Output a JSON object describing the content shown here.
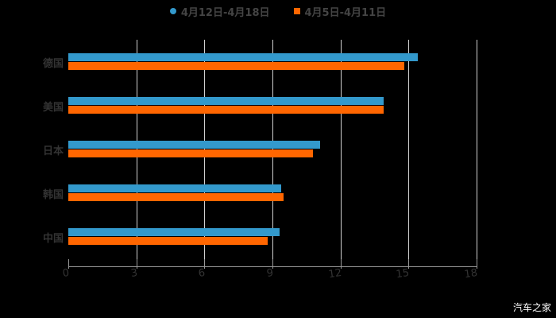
{
  "chart_data": {
    "type": "bar",
    "orientation": "horizontal",
    "title": "",
    "xlabel": "",
    "ylabel": "",
    "categories": [
      "德国",
      "美国",
      "日本",
      "韩国",
      "中国"
    ],
    "series": [
      {
        "name": "4月12日-4月18日",
        "color": "#3399CC",
        "values": [
          15.4,
          13.9,
          11.1,
          9.4,
          9.3
        ]
      },
      {
        "name": "4月5日-4月11日",
        "color": "#FF6600",
        "values": [
          14.8,
          13.9,
          10.8,
          9.5,
          8.8
        ]
      }
    ],
    "xlim": [
      0,
      18
    ],
    "xticks": [
      "0",
      "3",
      "6",
      "9",
      "12",
      "15",
      "18"
    ],
    "grid": true,
    "legend_position": "top"
  },
  "watermark": "汽车之家"
}
